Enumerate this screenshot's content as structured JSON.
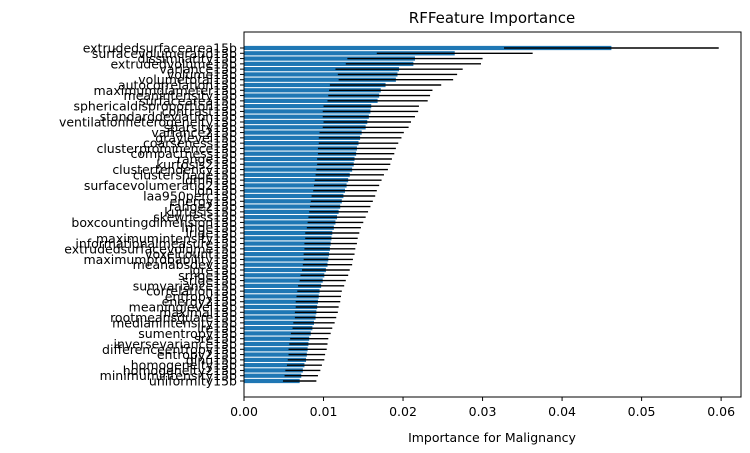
{
  "chart_data": {
    "type": "bar",
    "orientation": "horizontal",
    "title": "RFFeature Importance",
    "xlabel": "Importance for Malignancy",
    "ylabel": "",
    "xlim": [
      0,
      0.0625
    ],
    "xticks": [
      0.0,
      0.01,
      0.02,
      0.03,
      0.04,
      0.05,
      0.06
    ],
    "xtick_labels": [
      "0.00",
      "0.01",
      "0.02",
      "0.03",
      "0.04",
      "0.05",
      "0.06"
    ],
    "grid": false,
    "bar_color": "#1f77b4",
    "error_bar_color": "#000000",
    "categories": [
      "extrudedsurfacearea15b",
      "surfacevolumeratio15b",
      "dissimilarity15b",
      "extrudedvolume15b",
      "variance15b",
      "volume15b",
      "volumetotal15b",
      "autocorrelation15b",
      "maximumdiameter15b",
      "meanintensity15b",
      "surfacearea15b",
      "sphericaldisproportion15b",
      "contrast15b",
      "standarddeviation15b",
      "ventilationheterogeneity15b",
      "sparsity15b",
      "variance215b",
      "graylevel15b",
      "coarseness15b",
      "clusterprominence15b",
      "compactness15b",
      "range15b",
      "kurtosis215b",
      "clustertendency15b",
      "clustershade15b",
      "idmn15b",
      "surfacevolumeratio215b",
      "idn15b",
      "laa950perc15b",
      "energy15b",
      "range215b",
      "kurtosis15b",
      "skewness15b",
      "boxcountingdimension15b",
      "lrhge15b",
      "lrlge15b",
      "maximumintensity15b",
      "informationalmeasure15b",
      "extrudedsurfacevolume15b",
      "voxelcount15b",
      "maximumprobability15b",
      "meanabsdev15b",
      "lgre15b",
      "srhge15b",
      "srlge15b",
      "sumvariance15b",
      "correlation15b",
      "entropy15b",
      "energy215b",
      "meaninglevel15b",
      "maximal15b",
      "rootmeansquare15b",
      "medianintensity15b",
      "lre15b",
      "sumentropy15b",
      "sre15b",
      "inversevariance15b",
      "differenceentropy15b",
      "entropy215b",
      "glnu15b",
      "homogeneity15b",
      "homogeneity215b",
      "minimumintensity15b",
      "uniformity15b"
    ],
    "values": [
      0.0462,
      0.0265,
      0.0215,
      0.0213,
      0.0195,
      0.0193,
      0.0191,
      0.0178,
      0.0172,
      0.017,
      0.0168,
      0.016,
      0.0159,
      0.0157,
      0.0155,
      0.0153,
      0.0148,
      0.0146,
      0.0144,
      0.0142,
      0.0141,
      0.0139,
      0.0138,
      0.0136,
      0.0133,
      0.0131,
      0.0129,
      0.0127,
      0.0125,
      0.0123,
      0.0121,
      0.0119,
      0.0117,
      0.0115,
      0.0113,
      0.0111,
      0.011,
      0.0109,
      0.0108,
      0.0107,
      0.0106,
      0.0105,
      0.0103,
      0.0101,
      0.0099,
      0.0097,
      0.0095,
      0.0094,
      0.0093,
      0.0092,
      0.0091,
      0.009,
      0.0088,
      0.0086,
      0.0084,
      0.0082,
      0.0081,
      0.008,
      0.0079,
      0.0078,
      0.0076,
      0.0074,
      0.0072,
      0.007
    ],
    "errors": [
      0.0135,
      0.0098,
      0.0085,
      0.0085,
      0.008,
      0.0075,
      0.0072,
      0.007,
      0.0065,
      0.0064,
      0.0063,
      0.006,
      0.006,
      0.0058,
      0.0055,
      0.0054,
      0.0053,
      0.0052,
      0.005,
      0.0049,
      0.0048,
      0.0047,
      0.0046,
      0.0045,
      0.0043,
      0.0042,
      0.0041,
      0.004,
      0.004,
      0.0039,
      0.0038,
      0.0037,
      0.0036,
      0.0035,
      0.0034,
      0.0034,
      0.0033,
      0.0033,
      0.0032,
      0.0032,
      0.0031,
      0.0031,
      0.003,
      0.003,
      0.0029,
      0.0029,
      0.0028,
      0.0028,
      0.0028,
      0.0027,
      0.0027,
      0.0026,
      0.0026,
      0.0025,
      0.0025,
      0.0024,
      0.0024,
      0.0024,
      0.0023,
      0.0023,
      0.0022,
      0.0022,
      0.0021,
      0.0021
    ]
  }
}
